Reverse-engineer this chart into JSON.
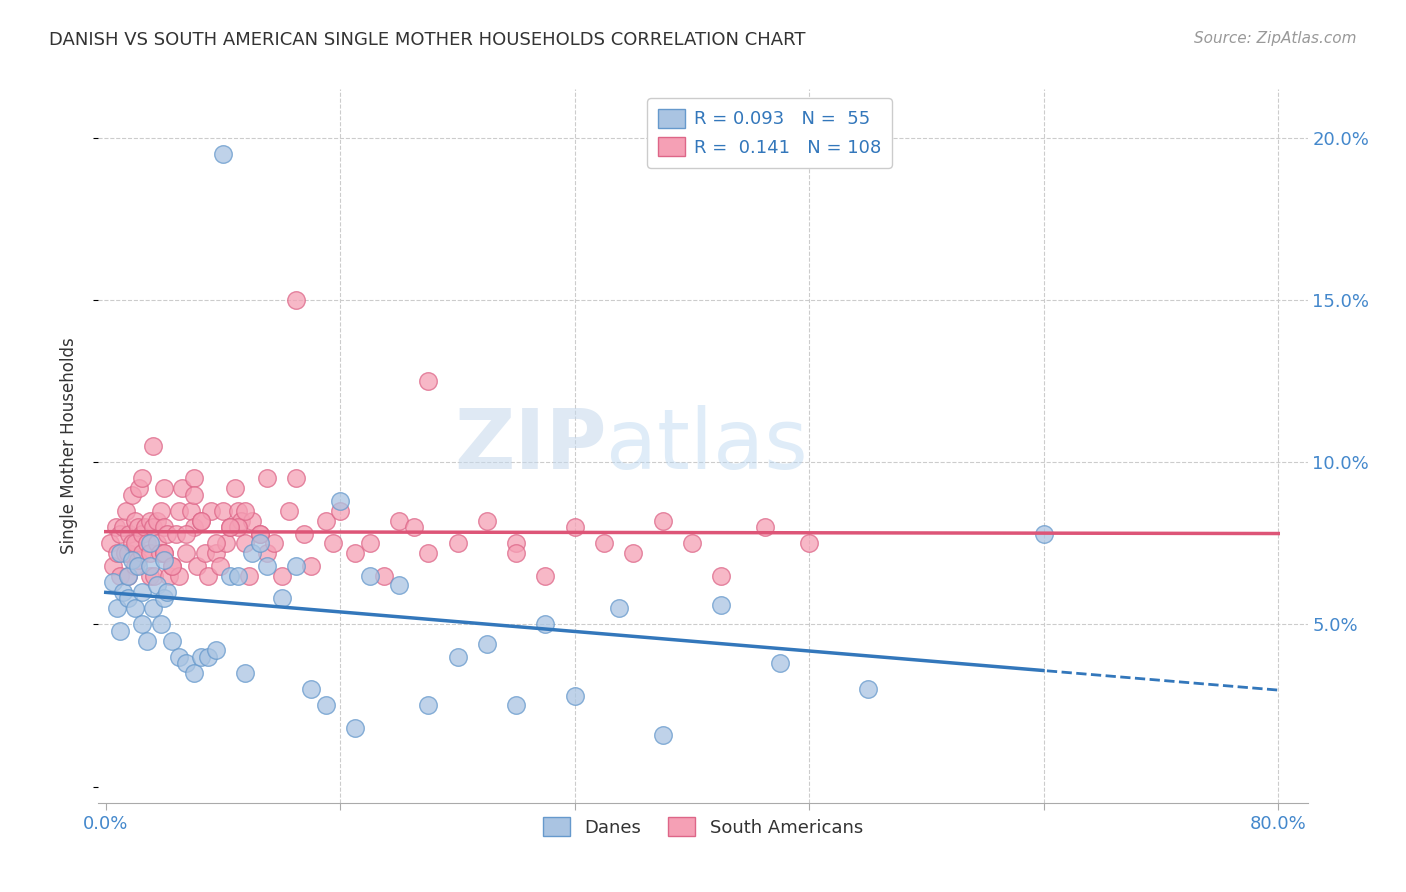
{
  "title": "DANISH VS SOUTH AMERICAN SINGLE MOTHER HOUSEHOLDS CORRELATION CHART",
  "source": "Source: ZipAtlas.com",
  "ylabel": "Single Mother Households",
  "danes_color": "#aac4e2",
  "danes_edge_color": "#6699cc",
  "south_americans_color": "#f5a0b5",
  "south_americans_edge_color": "#dd6688",
  "danes_line_color": "#3377bb",
  "south_americans_line_color": "#dd5577",
  "danes_R": "0.093",
  "danes_N": "55",
  "south_americans_R": "0.141",
  "south_americans_N": "108",
  "watermark_zip": "ZIP",
  "watermark_atlas": "atlas",
  "xlim": [
    -0.005,
    0.82
  ],
  "ylim": [
    -0.005,
    0.215
  ],
  "danes_scatter_x": [
    0.005,
    0.008,
    0.01,
    0.01,
    0.012,
    0.015,
    0.015,
    0.018,
    0.02,
    0.022,
    0.025,
    0.025,
    0.028,
    0.03,
    0.03,
    0.032,
    0.035,
    0.038,
    0.04,
    0.04,
    0.042,
    0.045,
    0.05,
    0.055,
    0.06,
    0.065,
    0.07,
    0.075,
    0.08,
    0.085,
    0.09,
    0.095,
    0.1,
    0.105,
    0.11,
    0.12,
    0.13,
    0.14,
    0.15,
    0.16,
    0.17,
    0.18,
    0.2,
    0.22,
    0.24,
    0.26,
    0.28,
    0.3,
    0.32,
    0.35,
    0.38,
    0.42,
    0.46,
    0.52,
    0.64
  ],
  "danes_scatter_y": [
    0.063,
    0.055,
    0.048,
    0.072,
    0.06,
    0.058,
    0.065,
    0.07,
    0.055,
    0.068,
    0.06,
    0.05,
    0.045,
    0.075,
    0.068,
    0.055,
    0.062,
    0.05,
    0.058,
    0.07,
    0.06,
    0.045,
    0.04,
    0.038,
    0.035,
    0.04,
    0.04,
    0.042,
    0.195,
    0.065,
    0.065,
    0.035,
    0.072,
    0.075,
    0.068,
    0.058,
    0.068,
    0.03,
    0.025,
    0.088,
    0.018,
    0.065,
    0.062,
    0.025,
    0.04,
    0.044,
    0.025,
    0.05,
    0.028,
    0.055,
    0.016,
    0.056,
    0.038,
    0.03,
    0.078
  ],
  "sa_scatter_x": [
    0.003,
    0.005,
    0.007,
    0.008,
    0.01,
    0.01,
    0.012,
    0.013,
    0.014,
    0.015,
    0.015,
    0.016,
    0.018,
    0.018,
    0.02,
    0.02,
    0.02,
    0.022,
    0.022,
    0.023,
    0.025,
    0.025,
    0.025,
    0.027,
    0.028,
    0.03,
    0.03,
    0.03,
    0.032,
    0.032,
    0.033,
    0.035,
    0.035,
    0.037,
    0.038,
    0.04,
    0.04,
    0.04,
    0.042,
    0.043,
    0.045,
    0.048,
    0.05,
    0.05,
    0.052,
    0.055,
    0.058,
    0.06,
    0.06,
    0.062,
    0.065,
    0.068,
    0.07,
    0.072,
    0.075,
    0.078,
    0.08,
    0.082,
    0.085,
    0.088,
    0.09,
    0.092,
    0.095,
    0.098,
    0.1,
    0.105,
    0.11,
    0.115,
    0.12,
    0.125,
    0.13,
    0.135,
    0.14,
    0.15,
    0.155,
    0.16,
    0.17,
    0.18,
    0.19,
    0.2,
    0.21,
    0.22,
    0.24,
    0.26,
    0.28,
    0.3,
    0.32,
    0.34,
    0.36,
    0.38,
    0.4,
    0.42,
    0.45,
    0.48,
    0.13,
    0.22,
    0.28,
    0.06,
    0.09,
    0.11,
    0.04,
    0.045,
    0.055,
    0.065,
    0.075,
    0.085,
    0.095,
    0.105
  ],
  "sa_scatter_y": [
    0.075,
    0.068,
    0.08,
    0.072,
    0.078,
    0.065,
    0.08,
    0.072,
    0.085,
    0.072,
    0.065,
    0.078,
    0.075,
    0.09,
    0.068,
    0.075,
    0.082,
    0.07,
    0.08,
    0.092,
    0.072,
    0.078,
    0.095,
    0.08,
    0.075,
    0.082,
    0.072,
    0.065,
    0.08,
    0.105,
    0.065,
    0.075,
    0.082,
    0.072,
    0.085,
    0.072,
    0.08,
    0.092,
    0.078,
    0.065,
    0.068,
    0.078,
    0.085,
    0.065,
    0.092,
    0.072,
    0.085,
    0.095,
    0.08,
    0.068,
    0.082,
    0.072,
    0.065,
    0.085,
    0.072,
    0.068,
    0.085,
    0.075,
    0.08,
    0.092,
    0.085,
    0.082,
    0.075,
    0.065,
    0.082,
    0.078,
    0.072,
    0.075,
    0.065,
    0.085,
    0.095,
    0.078,
    0.068,
    0.082,
    0.075,
    0.085,
    0.072,
    0.075,
    0.065,
    0.082,
    0.08,
    0.072,
    0.075,
    0.082,
    0.075,
    0.065,
    0.08,
    0.075,
    0.072,
    0.082,
    0.075,
    0.065,
    0.08,
    0.075,
    0.15,
    0.125,
    0.072,
    0.09,
    0.08,
    0.095,
    0.072,
    0.068,
    0.078,
    0.082,
    0.075,
    0.08,
    0.085,
    0.078
  ]
}
